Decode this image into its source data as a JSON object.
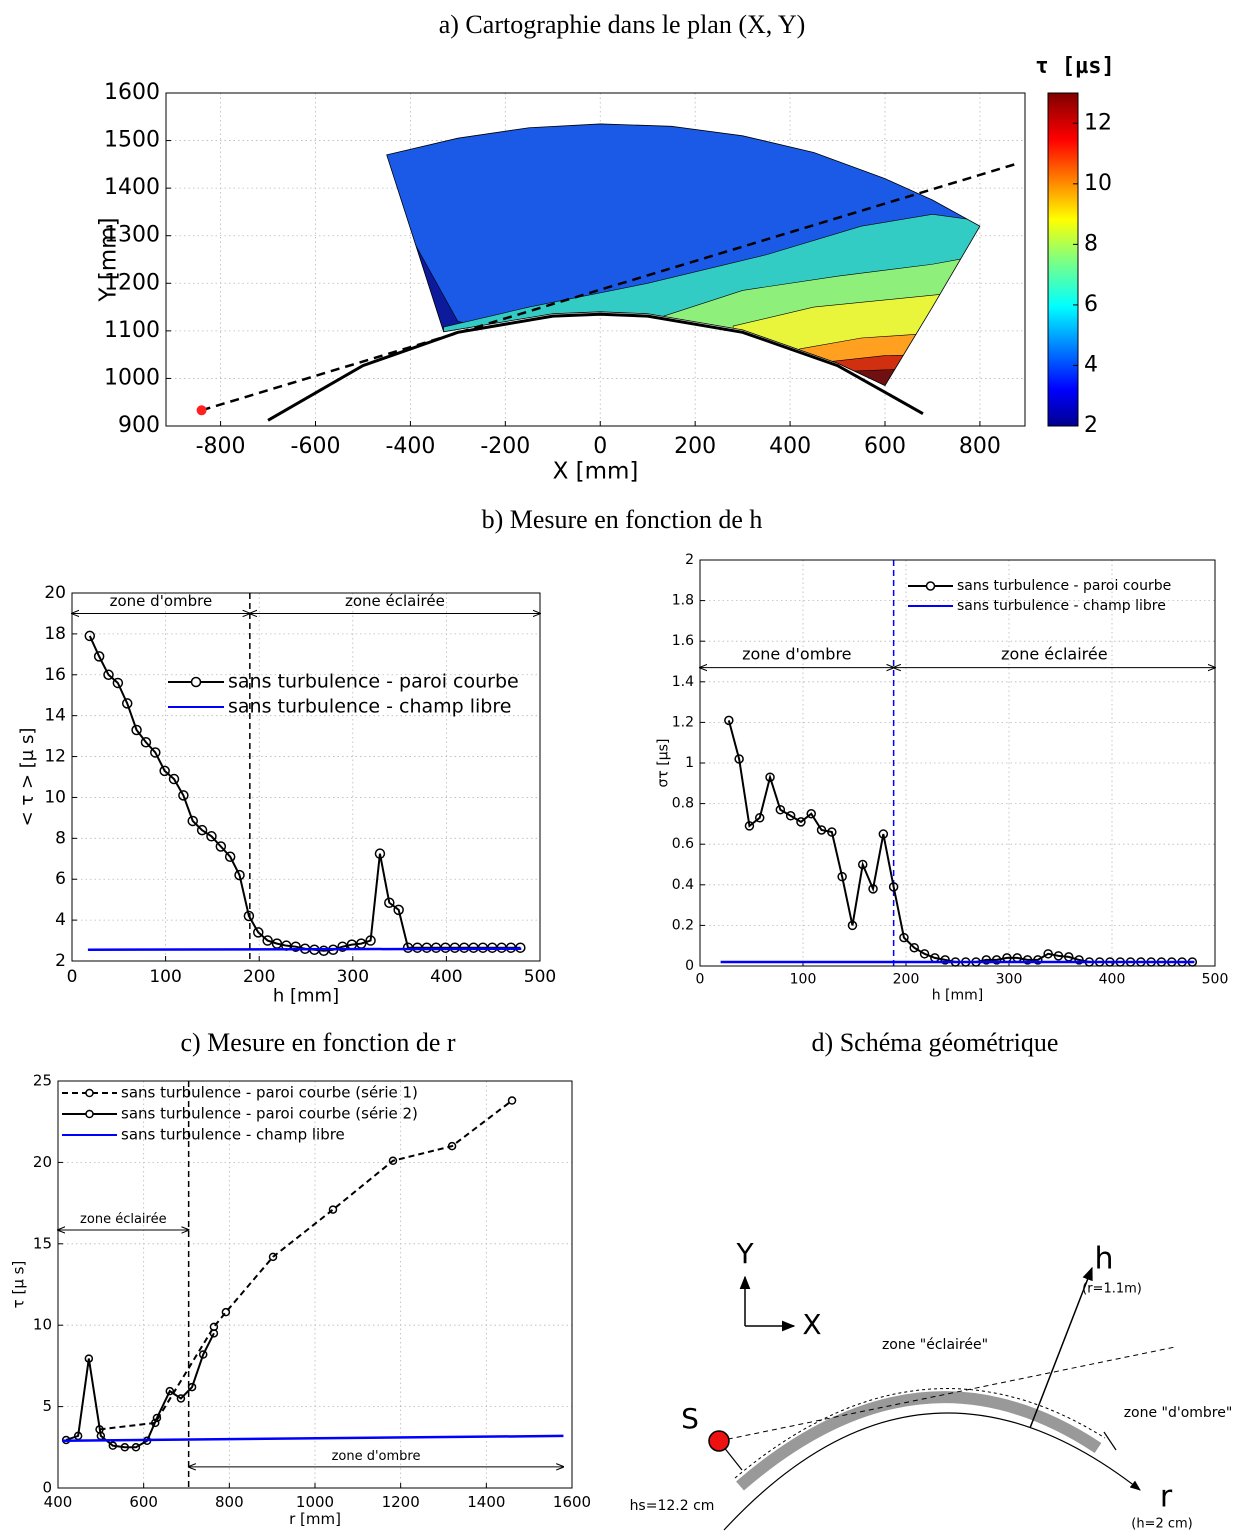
{
  "chart_data": [
    {
      "type": "contour",
      "title": "a) Cartographie dans le plan (X, Y)",
      "xlabel": "X [mm]",
      "ylabel": "Y [mm]",
      "xlim": [
        -915,
        895
      ],
      "ylim": [
        900,
        1600
      ],
      "xticks": [
        -800,
        -600,
        -400,
        -200,
        0,
        200,
        400,
        600,
        800
      ],
      "yticks": [
        900,
        1000,
        1100,
        1200,
        1300,
        1400,
        1500,
        1600
      ],
      "grid": true,
      "colorbar": {
        "label": "τ [µs]",
        "lim": [
          2,
          13
        ],
        "ticks": [
          2,
          4,
          6,
          8,
          10,
          12
        ]
      },
      "domain": {
        "x": [
          -450,
          -300,
          -150,
          0,
          150,
          300,
          450,
          600,
          700,
          800,
          700,
          600,
          500,
          300,
          100,
          0,
          -100,
          -330
        ],
        "y": [
          1470,
          1505,
          1527,
          1535,
          1530,
          1510,
          1475,
          1420,
          1375,
          1320,
          1150,
          985,
          1032,
          1102,
          1136,
          1140,
          1136,
          1098
        ]
      },
      "regions": [
        {
          "level": 2.5,
          "color": "#1a5ae6",
          "points": [
            [
              -460,
              960
            ],
            [
              810,
              960
            ],
            [
              810,
              1540
            ],
            [
              -460,
              1540
            ]
          ]
        },
        {
          "level": 2.2,
          "color": "#0d1a9c",
          "points": [
            [
              -460,
              1460
            ],
            [
              -330,
              1098
            ],
            [
              -250,
              1108
            ],
            [
              -300,
              1120
            ],
            [
              -400,
              1300
            ]
          ]
        },
        {
          "level": 3.8,
          "color": "#33ccc4",
          "points": [
            [
              -330,
              1108
            ],
            [
              -150,
              1150
            ],
            [
              100,
              1200
            ],
            [
              350,
              1260
            ],
            [
              550,
              1320
            ],
            [
              700,
              1345
            ],
            [
              810,
              1330
            ],
            [
              810,
              960
            ],
            [
              -330,
              960
            ]
          ]
        },
        {
          "level": 4.5,
          "color": "#8ef07a",
          "points": [
            [
              100,
              1120
            ],
            [
              300,
              1185
            ],
            [
              500,
              1215
            ],
            [
              700,
              1240
            ],
            [
              810,
              1260
            ],
            [
              810,
              960
            ],
            [
              100,
              960
            ]
          ]
        },
        {
          "level": 5.5,
          "color": "#e8f53a",
          "points": [
            [
              280,
              1110
            ],
            [
              450,
              1150
            ],
            [
              600,
              1165
            ],
            [
              750,
              1180
            ],
            [
              810,
              1180
            ],
            [
              810,
              960
            ],
            [
              280,
              960
            ]
          ]
        },
        {
          "level": 6.5,
          "color": "#ffa020",
          "points": [
            [
              420,
              1062
            ],
            [
              550,
              1085
            ],
            [
              700,
              1095
            ],
            [
              810,
              1100
            ],
            [
              810,
              960
            ],
            [
              420,
              960
            ]
          ]
        },
        {
          "level": 8,
          "color": "#d03010",
          "points": [
            [
              480,
              1035
            ],
            [
              600,
              1048
            ],
            [
              700,
              1050
            ],
            [
              700,
              960
            ],
            [
              480,
              960
            ]
          ]
        },
        {
          "level": 10,
          "color": "#701010",
          "points": [
            [
              520,
              1015
            ],
            [
              650,
              1020
            ],
            [
              650,
              960
            ],
            [
              520,
              960
            ]
          ]
        }
      ],
      "wall": {
        "x": [
          -700,
          -500,
          -300,
          -100,
          0,
          100,
          300,
          500,
          680
        ],
        "y": [
          912,
          1027,
          1097,
          1131,
          1135,
          1131,
          1097,
          1027,
          926
        ]
      },
      "ray": {
        "x": [
          -840,
          880
        ],
        "y": [
          933,
          1452
        ]
      },
      "source": {
        "x": -840,
        "y": 933,
        "color": "#ff2020"
      }
    },
    {
      "type": "line",
      "title": "b) Mesure en fonction de h",
      "xlabel": "h [mm]",
      "ylabel": "< τ > [µ s]",
      "xlim": [
        0,
        500
      ],
      "ylim": [
        2,
        20
      ],
      "xticks": [
        0,
        100,
        200,
        300,
        400,
        500
      ],
      "yticks": [
        2,
        4,
        6,
        8,
        10,
        12,
        14,
        16,
        18,
        20
      ],
      "grid": true,
      "series": [
        {
          "name": "sans turbulence - paroi courbe",
          "color": "#000000",
          "marker": "o",
          "x": [
            19,
            29,
            39,
            49,
            59,
            69,
            79,
            89,
            99,
            109,
            119,
            129,
            139,
            149,
            159,
            169,
            179,
            189,
            199,
            209,
            219,
            229,
            239,
            249,
            259,
            269,
            279,
            289,
            299,
            309,
            319,
            329,
            339,
            349,
            359,
            369,
            379,
            389,
            399,
            409,
            419,
            429,
            439,
            449,
            459,
            469,
            479
          ],
          "values": [
            17.9,
            16.9,
            16.0,
            15.6,
            14.6,
            13.3,
            12.7,
            12.2,
            11.3,
            10.9,
            10.1,
            8.85,
            8.4,
            8.1,
            7.6,
            7.1,
            6.2,
            4.2,
            3.4,
            3.0,
            2.85,
            2.75,
            2.7,
            2.6,
            2.55,
            2.5,
            2.55,
            2.7,
            2.8,
            2.85,
            3.0,
            7.25,
            4.85,
            4.5,
            2.65,
            2.65,
            2.65,
            2.65,
            2.65,
            2.65,
            2.65,
            2.65,
            2.65,
            2.65,
            2.65,
            2.65,
            2.65
          ]
        },
        {
          "name": "sans turbulence - champ libre",
          "color": "#0000ff",
          "x": [
            17,
            480
          ],
          "values": [
            2.55,
            2.6
          ]
        }
      ],
      "vline": {
        "x": 190,
        "color": "#000000"
      },
      "annotations": [
        {
          "text": "zone d'ombre",
          "x": [
            0,
            190
          ],
          "y": 19
        },
        {
          "text": "zone éclairée",
          "x": [
            190,
            500
          ],
          "y": 19
        }
      ]
    },
    {
      "type": "line",
      "xlabel": "h [mm]",
      "ylabel": "στ [µs]",
      "xlim": [
        0,
        500
      ],
      "ylim": [
        0,
        2
      ],
      "xticks": [
        0,
        100,
        200,
        300,
        400,
        500
      ],
      "yticks": [
        0,
        0.2,
        0.4,
        0.6,
        0.8,
        1,
        1.2,
        1.4,
        1.6,
        1.8,
        2
      ],
      "grid": true,
      "series": [
        {
          "name": "sans turbulence - paroi courbe",
          "color": "#000000",
          "marker": "o",
          "x": [
            28,
            38,
            48,
            58,
            68,
            78,
            88,
            98,
            108,
            118,
            128,
            138,
            148,
            158,
            168,
            178,
            188,
            198,
            208,
            218,
            228,
            238,
            248,
            258,
            268,
            278,
            288,
            298,
            308,
            318,
            328,
            338,
            348,
            358,
            368,
            378,
            388,
            398,
            408,
            418,
            428,
            438,
            448,
            458,
            468,
            478
          ],
          "values": [
            1.21,
            1.02,
            0.69,
            0.73,
            0.93,
            0.77,
            0.74,
            0.71,
            0.75,
            0.67,
            0.66,
            0.44,
            0.2,
            0.5,
            0.38,
            0.65,
            0.39,
            0.14,
            0.09,
            0.06,
            0.04,
            0.03,
            0.02,
            0.02,
            0.02,
            0.03,
            0.03,
            0.04,
            0.04,
            0.03,
            0.03,
            0.06,
            0.05,
            0.045,
            0.03,
            0.02,
            0.02,
            0.02,
            0.02,
            0.02,
            0.02,
            0.02,
            0.02,
            0.02,
            0.02,
            0.02
          ]
        },
        {
          "name": "sans turbulence - champ libre",
          "color": "#0000ff",
          "x": [
            20,
            480
          ],
          "values": [
            0.02,
            0.02
          ]
        }
      ],
      "vline": {
        "x": 188,
        "color": "#0000ff"
      },
      "annotations": [
        {
          "text": "zone d'ombre",
          "x": [
            0,
            188
          ],
          "y": 1.47
        },
        {
          "text": "zone éclairée",
          "x": [
            188,
            500
          ],
          "y": 1.47
        }
      ]
    },
    {
      "type": "line",
      "title": "c) Mesure en fonction de r",
      "xlabel": "r [mm]",
      "ylabel": "τ [µ s]",
      "xlim": [
        400,
        1600
      ],
      "ylim": [
        0,
        25
      ],
      "xticks": [
        400,
        600,
        800,
        1000,
        1200,
        1400,
        1600
      ],
      "yticks": [
        0,
        5,
        10,
        15,
        20,
        25
      ],
      "grid": true,
      "series": [
        {
          "name": "sans turbulence - paroi courbe (série 1)",
          "color": "#000000",
          "marker": "o",
          "dash": true,
          "x": [
            497,
            627,
            764,
            792,
            902,
            1042,
            1182,
            1320,
            1460
          ],
          "values": [
            3.6,
            4.0,
            9.9,
            10.8,
            14.2,
            17.1,
            20.1,
            21.0,
            23.8
          ]
        },
        {
          "name": "sans turbulence - paroi courbe (série 2)",
          "color": "#000000",
          "marker": "o",
          "x": [
            419,
            447,
            472,
            500,
            528,
            556,
            582,
            608,
            631,
            661,
            687,
            713,
            739,
            764
          ],
          "values": [
            2.95,
            3.2,
            7.95,
            3.2,
            2.6,
            2.5,
            2.5,
            2.9,
            4.3,
            5.95,
            5.5,
            6.2,
            8.2,
            9.5
          ]
        },
        {
          "name": "sans turbulence - champ libre",
          "color": "#0000ff",
          "x": [
            410,
            1580
          ],
          "values": [
            2.9,
            3.2
          ]
        }
      ],
      "vline": {
        "x": 705,
        "color": "#000000"
      },
      "annotations": [
        {
          "text": "zone éclairée",
          "x": [
            400,
            705
          ],
          "y": 15.85
        },
        {
          "text": "zone d'ombre",
          "x": [
            705,
            1580
          ],
          "y": 1.3
        }
      ]
    }
  ],
  "diagram": {
    "title": "d) Schéma géométrique",
    "y_axis": "Y",
    "x_axis": "X",
    "h": "h",
    "h_note": "(r=1.1m)",
    "lit": "zone \"éclairée\"",
    "shadow": "zone \"d'ombre\"",
    "source": "S",
    "hs": "hs=12.2 cm",
    "r": "r",
    "r_note": "(h=2 cm)"
  }
}
